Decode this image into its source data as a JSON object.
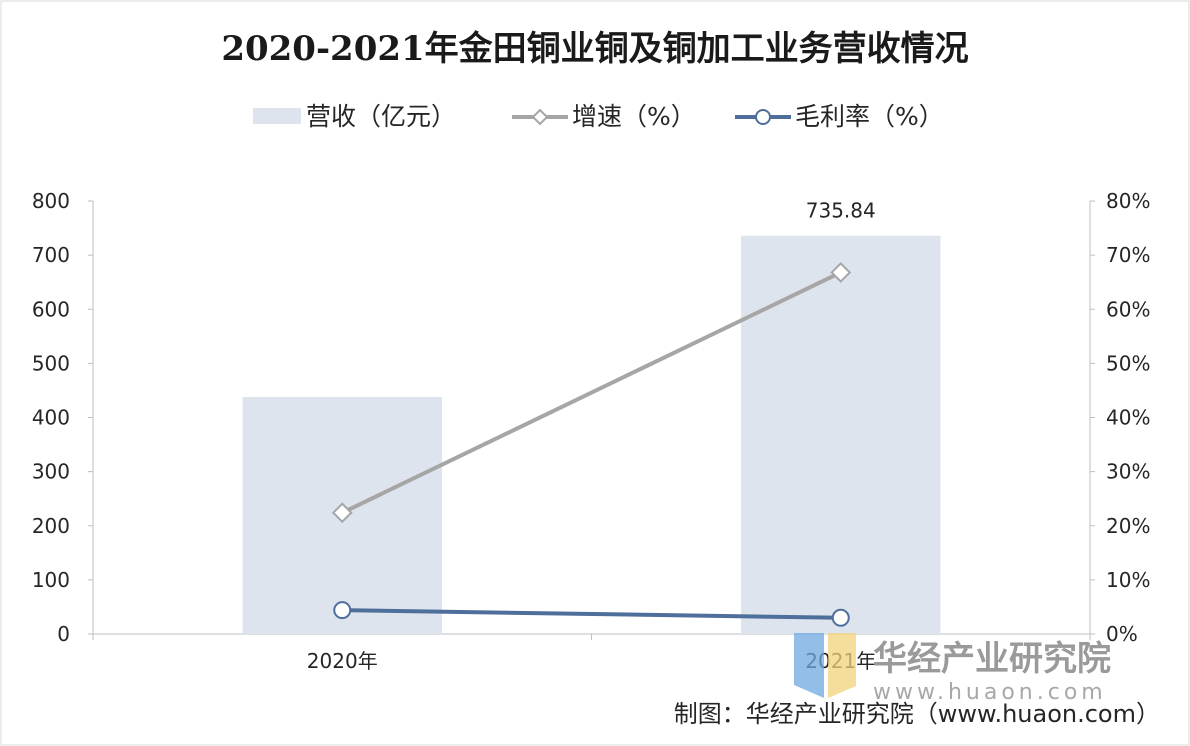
{
  "chart_data": {
    "type": "bar",
    "title": "2020-2021年金田铜业铜及铜加工业务营收情况",
    "categories": [
      "2020年",
      "2021年"
    ],
    "series": [
      {
        "name": "营收（亿元）",
        "kind": "bar",
        "axis": "left",
        "values": [
          438,
          735.84
        ],
        "color": "#dde4ee",
        "labels": [
          null,
          "735.84"
        ]
      },
      {
        "name": "增速（%）",
        "kind": "line",
        "axis": "right",
        "marker": "diamond",
        "values": [
          22.4,
          66.8
        ],
        "color": "#a6a6a6"
      },
      {
        "name": "毛利率（%）",
        "kind": "line",
        "axis": "right",
        "marker": "circle",
        "values": [
          4.4,
          3.0
        ],
        "color": "#4e6e9c"
      }
    ],
    "ylim": [
      0,
      800
    ],
    "y_ticks": [
      "0",
      "100",
      "200",
      "300",
      "400",
      "500",
      "600",
      "700",
      "800"
    ],
    "y2lim": [
      0,
      80
    ],
    "y2_ticks": [
      "0%",
      "10%",
      "20%",
      "30%",
      "40%",
      "50%",
      "60%",
      "70%",
      "80%"
    ],
    "legend_position": "top",
    "grid": false
  },
  "watermark": {
    "brand": "华经产业研究院",
    "url": "www.huaon.com"
  },
  "credit": "制图：华经产业研究院（www.huaon.com）"
}
